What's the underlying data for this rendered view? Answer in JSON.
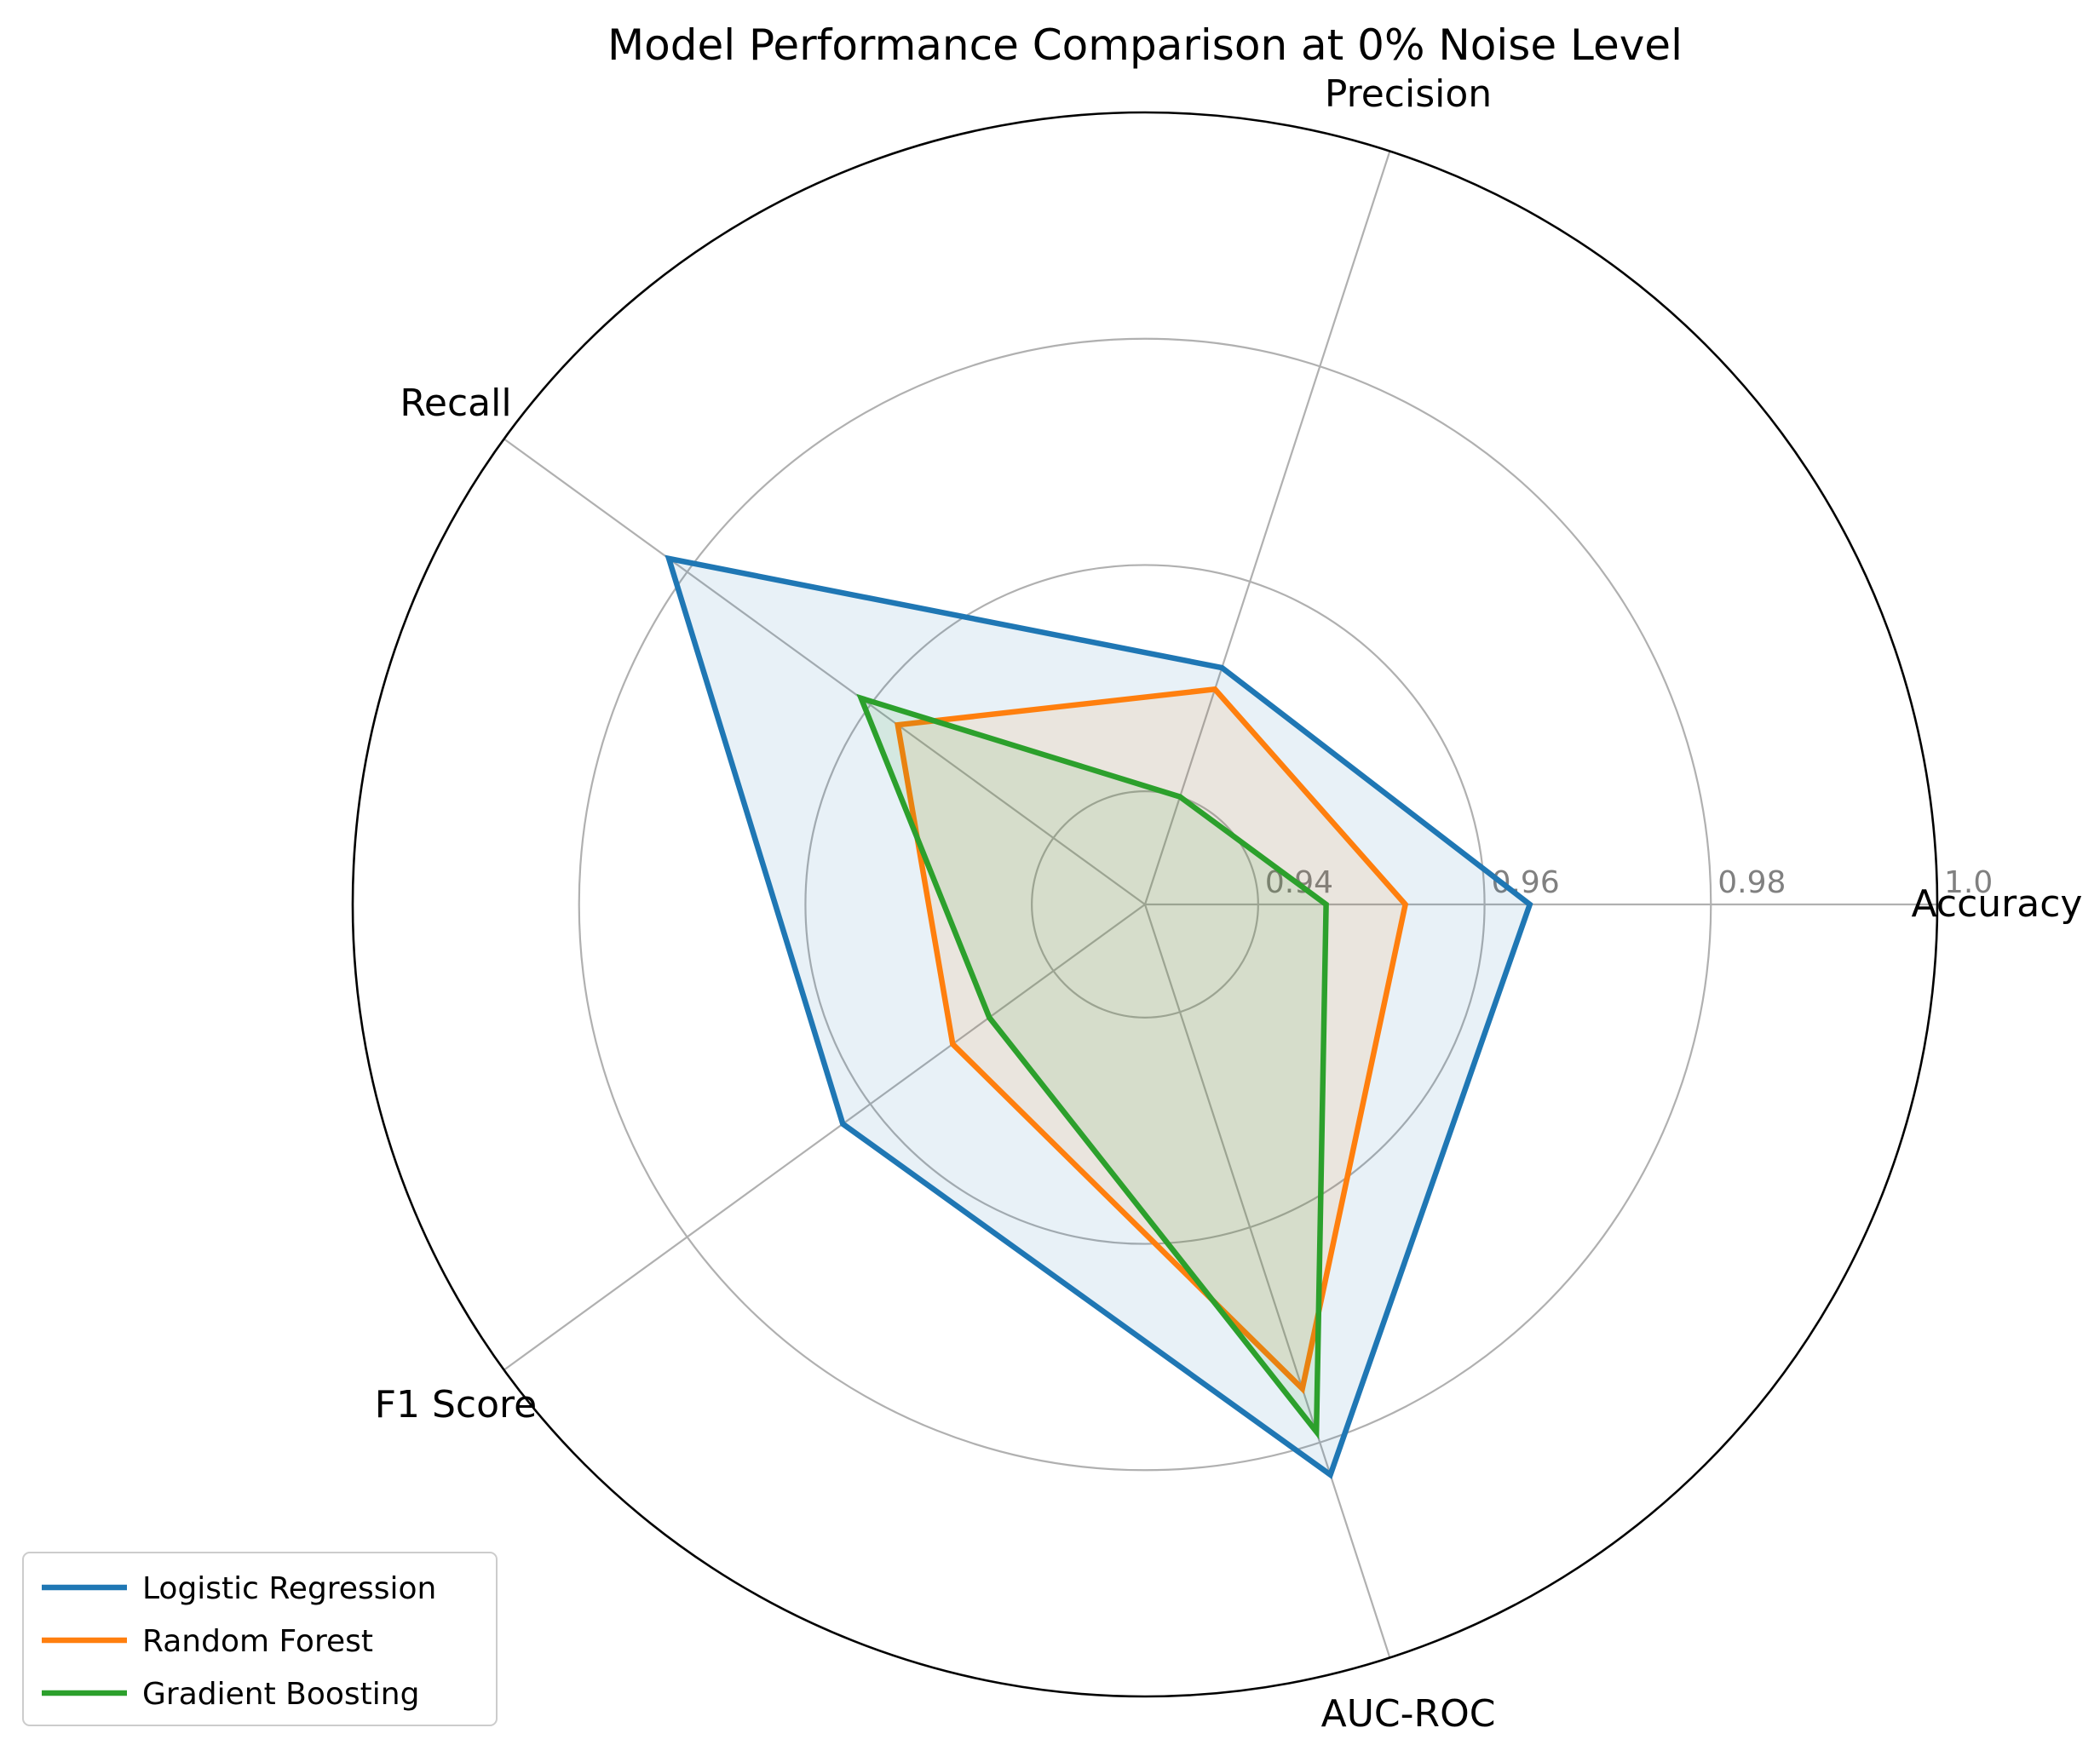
{
  "chart_data": {
    "type": "radar",
    "title": "Model Performance Comparison at 0% Noise Level",
    "categories": [
      "Accuracy",
      "Precision",
      "Recall",
      "F1 Score",
      "AUC-ROC"
    ],
    "rlim": [
      0.93,
      1.0
    ],
    "rticks": [
      {
        "value": 0.94,
        "label": "0.94"
      },
      {
        "value": 0.96,
        "label": "0.96"
      },
      {
        "value": 0.98,
        "label": "0.98"
      },
      {
        "value": 1.0,
        "label": "1.0"
      }
    ],
    "grid": true,
    "legend_position": "lower-left",
    "series": [
      {
        "name": "Logistic Regression",
        "color": "#1f77b4",
        "values": [
          0.964,
          0.952,
          0.982,
          0.963,
          0.983
        ]
      },
      {
        "name": "Random Forest",
        "color": "#ff7f0e",
        "values": [
          0.953,
          0.95,
          0.957,
          0.951,
          0.975
        ]
      },
      {
        "name": "Gradient Boosting",
        "color": "#2ca02c",
        "values": [
          0.946,
          0.94,
          0.961,
          0.947,
          0.979
        ]
      }
    ]
  }
}
